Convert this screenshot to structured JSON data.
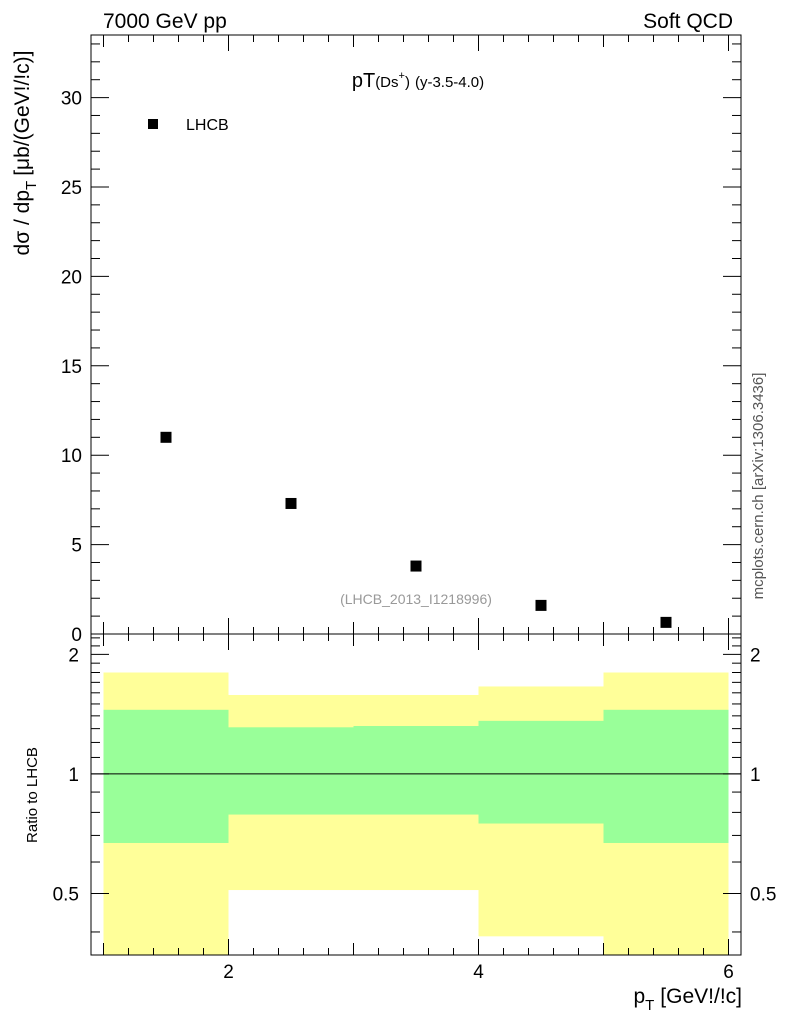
{
  "header": {
    "left": "7000 GeV pp",
    "right": "Soft QCD"
  },
  "side_label": "mcplots.cern.ch [arXiv:1306.3436]",
  "chart_data": [
    {
      "type": "scatter",
      "title_main": "pT",
      "title_sub": "(Ds",
      "title_sup": "+",
      "title_close": ")",
      "title_rest": "(y-3.5-4.0)",
      "ylabel_main": "dσ / dp",
      "ylabel_sub": "T",
      "ylabel_rest": "[μb/(GeV!/!c)]",
      "ylim": [
        0,
        33.5
      ],
      "xlim": [
        0.9,
        6.1
      ],
      "yticks": [
        0,
        5,
        10,
        15,
        20,
        25,
        30
      ],
      "ytick_labels": [
        "0",
        "5",
        "10",
        "15",
        "20",
        "25",
        "30"
      ],
      "legend": {
        "label": "LHCB",
        "placement": "top-left"
      },
      "annotation": "(LHCB_2013_I1218996)",
      "series": [
        {
          "name": "LHCB",
          "x": [
            1.5,
            2.5,
            3.5,
            4.5,
            5.5
          ],
          "y": [
            11.0,
            7.3,
            3.8,
            1.6,
            0.65
          ]
        }
      ]
    },
    {
      "type": "area",
      "ylabel": "Ratio to LHCB",
      "xlabel_main": "p",
      "xlabel_sub": "T",
      "xlabel_rest": "[GeV!/!c]",
      "xlim": [
        0.9,
        6.1
      ],
      "ylim": [
        0.35,
        2.25
      ],
      "xticks": [
        2,
        4,
        6
      ],
      "xtick_labels": [
        "2",
        "4",
        "6"
      ],
      "yticks": [
        0.5,
        1,
        2
      ],
      "ytick_labels": [
        "0.5",
        "1",
        "2"
      ],
      "reference_line": 1,
      "bins": [
        [
          1,
          2
        ],
        [
          2,
          3
        ],
        [
          3,
          4
        ],
        [
          4,
          5
        ],
        [
          5,
          6
        ]
      ],
      "band_yellow": [
        [
          0.35,
          1.8
        ],
        [
          0.51,
          1.58
        ],
        [
          0.51,
          1.58
        ],
        [
          0.39,
          1.66
        ],
        [
          0.35,
          1.8
        ]
      ],
      "band_green": [
        [
          0.67,
          1.45
        ],
        [
          0.79,
          1.31
        ],
        [
          0.79,
          1.32
        ],
        [
          0.75,
          1.36
        ],
        [
          0.67,
          1.45
        ]
      ]
    }
  ]
}
